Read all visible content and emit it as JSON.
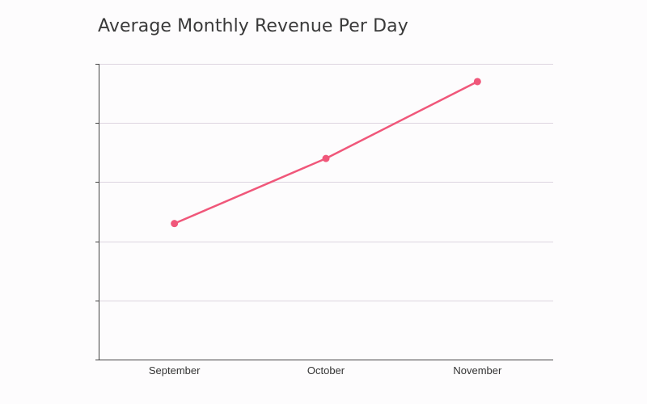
{
  "chart_data": {
    "type": "line",
    "title": "Average Monthly Revenue Per Day",
    "xlabel": "",
    "ylabel": "",
    "categories": [
      "September",
      "October",
      "November"
    ],
    "series": [
      {
        "name": "Average Monthly Revenue Per Day",
        "values": [
          2.3,
          3.4,
          4.7
        ],
        "color": "#f0577a"
      }
    ],
    "ylim": [
      0,
      5
    ],
    "y_tick_count": 6,
    "y_tick_labels_visible": false,
    "grid": true,
    "grid_color": "#ddd5e0",
    "axis_color": "#444444"
  }
}
